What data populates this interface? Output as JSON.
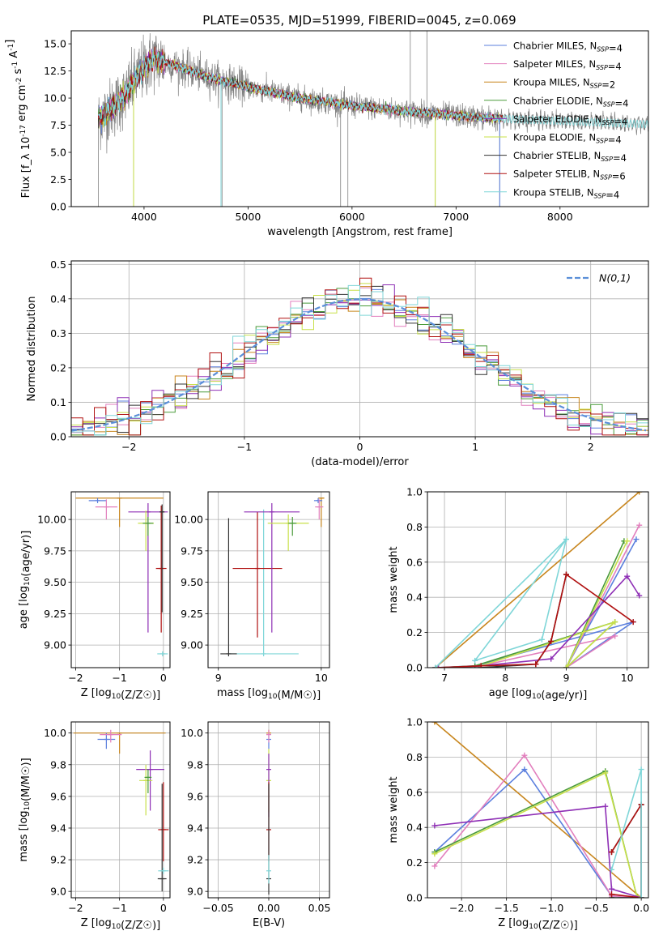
{
  "title": "PLATE=0535, MJD=51999, FIBERID=0045, z=0.069",
  "colors": [
    "#5b7fde",
    "#e27fbd",
    "#c8861e",
    "#4a9b3a",
    "#8e2fb5",
    "#c8e04a",
    "#333333",
    "#b01010",
    "#7fd6d8"
  ],
  "chart_data": [
    {
      "id": "spectrum",
      "type": "line",
      "xlabel": "wavelength [Angstrom, rest frame]",
      "ylabel": "Flux [f_λ 10^-17 erg cm^-2 s^-1 A^-1]",
      "xlim": [
        3300,
        8850
      ],
      "ylim": [
        0,
        16.2
      ],
      "xticks": [
        4000,
        5000,
        6000,
        7000,
        8000
      ],
      "yticks": [
        0.0,
        2.5,
        5.0,
        7.5,
        10.0,
        12.5,
        15.0
      ],
      "data_color": "#808080",
      "legend_position": "top-right",
      "legend": [
        {
          "label": "Chabrier MILES, N_SSP=4",
          "color": "#5b7fde"
        },
        {
          "label": "Salpeter MILES, N_SSP=4",
          "color": "#e27fbd"
        },
        {
          "label": "Kroupa MILES, N_SSP=2",
          "color": "#c8861e"
        },
        {
          "label": "Chabrier ELODIE, N_SSP=4",
          "color": "#4a9b3a"
        },
        {
          "label": "Salpeter ELODIE, N_SSP=4",
          "color": "#8e2fb5"
        },
        {
          "label": "Kroupa ELODIE, N_SSP=4",
          "color": "#c8e04a"
        },
        {
          "label": "Chabrier STELIB, N_SSP=4",
          "color": "#333333"
        },
        {
          "label": "Salpeter STELIB, N_SSP=6",
          "color": "#b01010"
        },
        {
          "label": "Kroupa STELIB, N_SSP=4",
          "color": "#7fd6d8"
        }
      ],
      "continuum": {
        "x": [
          3560,
          3800,
          4000,
          4100,
          4300,
          4600,
          5000,
          5500,
          6000,
          6500,
          7000,
          7400,
          8000,
          8800
        ],
        "y": [
          8.0,
          10.0,
          12.8,
          13.6,
          13.0,
          12.0,
          11.0,
          10.0,
          9.3,
          8.8,
          8.4,
          8.1,
          7.9,
          7.6
        ]
      }
    },
    {
      "id": "residuals",
      "type": "histogram",
      "xlabel": "(data-model)/error",
      "ylabel": "Normed distribution",
      "xlim": [
        -2.5,
        2.5
      ],
      "ylim": [
        0,
        0.51
      ],
      "xticks": [
        -2,
        -1,
        0,
        1,
        2
      ],
      "yticks": [
        0.0,
        0.1,
        0.2,
        0.3,
        0.4,
        0.5
      ],
      "grid": true,
      "legend": [
        {
          "label": "N(0,1)",
          "color": "#5b8fd8",
          "style": "dashed"
        }
      ],
      "legend_position": "top-right"
    },
    {
      "id": "age_vs_Z",
      "type": "errorbar",
      "xlabel": "Z [log10(Z/Z☉)]",
      "ylabel": "age [log10(age/yr)]",
      "xlim": [
        -2.1,
        0.15
      ],
      "ylim": [
        8.82,
        10.22
      ],
      "xticks": [
        -2,
        -1,
        0
      ],
      "yticks": [
        9.0,
        9.25,
        9.5,
        9.75,
        10.0
      ],
      "points": [
        {
          "c": 2,
          "x": -1.0,
          "xerr": 1.0,
          "y": 10.17,
          "yerr": [
            0.23,
            0.0
          ]
        },
        {
          "c": 0,
          "x": -1.5,
          "xerr": 0.2,
          "y": 10.15,
          "yerr": [
            0.02,
            0.02
          ]
        },
        {
          "c": 1,
          "x": -1.3,
          "xerr": 0.25,
          "y": 10.1,
          "yerr": [
            0.1,
            0.06
          ]
        },
        {
          "c": 4,
          "x": -0.35,
          "xerr": 0.45,
          "y": 10.06,
          "yerr": [
            0.96,
            0.07
          ]
        },
        {
          "c": 5,
          "x": -0.4,
          "xerr": 0.18,
          "y": 9.97,
          "yerr": [
            0.22,
            0.1
          ]
        },
        {
          "c": 3,
          "x": -0.35,
          "xerr": 0.12,
          "y": 9.97,
          "yerr": [
            0.1,
            0.05
          ]
        },
        {
          "c": 7,
          "x": -0.05,
          "xerr": 0.12,
          "y": 9.61,
          "yerr": [
            0.51,
            0.5
          ]
        },
        {
          "c": 6,
          "x": -0.03,
          "xerr": 0.05,
          "y": 10.06,
          "yerr": [
            0.8,
            0.06
          ]
        },
        {
          "c": 8,
          "x": -0.02,
          "xerr": 0.12,
          "y": 8.93,
          "yerr": [
            0.02,
            0.02
          ]
        }
      ]
    },
    {
      "id": "age_vs_mass",
      "type": "errorbar",
      "xlabel": "mass [log10(M/M☉)]",
      "ylabel": "",
      "xlim": [
        8.9,
        10.08
      ],
      "ylim": [
        8.82,
        10.22
      ],
      "xticks": [
        9,
        10
      ],
      "yticks": [
        9.0,
        9.25,
        9.5,
        9.75,
        10.0
      ],
      "points": [
        {
          "c": 8,
          "x": 9.44,
          "xerr": 0.34,
          "y": 8.93,
          "yerr": [
            0.02,
            1.15
          ]
        },
        {
          "c": 6,
          "x": 9.1,
          "xerr": 0.08,
          "y": 8.93,
          "yerr": [
            0.02,
            1.08
          ]
        },
        {
          "c": 7,
          "x": 9.38,
          "xerr": 0.24,
          "y": 9.61,
          "yerr": [
            0.55,
            0.45
          ]
        },
        {
          "c": 4,
          "x": 9.52,
          "xerr": 0.27,
          "y": 10.06,
          "yerr": [
            0.96,
            0.07
          ]
        },
        {
          "c": 5,
          "x": 9.68,
          "xerr": 0.2,
          "y": 9.97,
          "yerr": [
            0.22,
            0.07
          ]
        },
        {
          "c": 3,
          "x": 9.72,
          "xerr": 0.04,
          "y": 9.97,
          "yerr": [
            0.1,
            0.05
          ]
        },
        {
          "c": 2,
          "x": 10.0,
          "xerr": 0.03,
          "y": 10.17,
          "yerr": [
            0.23,
            0.0
          ]
        },
        {
          "c": 0,
          "x": 9.97,
          "xerr": 0.04,
          "y": 10.15,
          "yerr": [
            0.02,
            0.02
          ]
        },
        {
          "c": 1,
          "x": 9.98,
          "xerr": 0.04,
          "y": 10.1,
          "yerr": [
            0.1,
            0.06
          ]
        }
      ]
    },
    {
      "id": "weight_vs_age",
      "type": "line",
      "xlabel": "age [log10(age/yr)]",
      "ylabel": "mass weight",
      "xlim": [
        6.72,
        10.35
      ],
      "ylim": [
        0,
        1.0
      ],
      "xticks": [
        7,
        8,
        9,
        10
      ],
      "yticks": [
        0.0,
        0.2,
        0.4,
        0.6,
        0.8,
        1.0
      ],
      "grid": true,
      "series": [
        {
          "c": 2,
          "x": [
            6.85,
            10.2
          ],
          "y": [
            0.0,
            1.0
          ]
        },
        {
          "c": 0,
          "x": [
            10.15,
            9.0,
            10.1,
            7.5,
            6.85
          ],
          "y": [
            0.73,
            0.0,
            0.26,
            0.01,
            0.0
          ]
        },
        {
          "c": 1,
          "x": [
            10.2,
            9.0,
            9.8,
            7.6,
            6.9
          ],
          "y": [
            0.81,
            0.0,
            0.18,
            0.01,
            0.0
          ]
        },
        {
          "c": 3,
          "x": [
            9.95,
            9.0,
            9.8,
            7.5,
            6.9
          ],
          "y": [
            0.72,
            0.0,
            0.26,
            0.01,
            0.0
          ]
        },
        {
          "c": 5,
          "x": [
            10.0,
            9.0,
            9.8,
            7.6,
            6.9
          ],
          "y": [
            0.72,
            0.0,
            0.26,
            0.01,
            0.0
          ]
        },
        {
          "c": 4,
          "x": [
            10.2,
            10.0,
            8.75,
            7.6,
            6.9
          ],
          "y": [
            0.41,
            0.52,
            0.05,
            0.01,
            0.0
          ]
        },
        {
          "c": 6,
          "x": [
            9.0,
            8.75,
            8.5,
            7.6,
            6.85
          ],
          "y": [
            0.53,
            0.15,
            0.02,
            0.0,
            0.0
          ]
        },
        {
          "c": 7,
          "x": [
            10.1,
            9.0,
            8.75,
            8.5,
            7.6,
            6.85
          ],
          "y": [
            0.26,
            0.53,
            0.15,
            0.02,
            0.01,
            0.0
          ]
        },
        {
          "c": 8,
          "x": [
            9.0,
            8.6,
            7.5,
            9.0,
            6.85
          ],
          "y": [
            0.73,
            0.16,
            0.04,
            0.73,
            0.0
          ]
        }
      ]
    },
    {
      "id": "mass_vs_Z",
      "type": "errorbar",
      "xlabel": "Z [log10(Z/Z☉)]",
      "ylabel": "mass [log10(M/M☉)]",
      "xlim": [
        -2.1,
        0.15
      ],
      "ylim": [
        8.96,
        10.07
      ],
      "xticks": [
        -2,
        -1,
        0
      ],
      "yticks": [
        9.0,
        9.2,
        9.4,
        9.6,
        9.8,
        10.0
      ],
      "points": [
        {
          "c": 2,
          "x": -1.0,
          "xerr": 1.05,
          "y": 10.0,
          "yerr": [
            0.13,
            0.0
          ]
        },
        {
          "c": 0,
          "x": -1.3,
          "xerr": 0.2,
          "y": 9.96,
          "yerr": [
            0.06,
            0.04
          ]
        },
        {
          "c": 1,
          "x": -1.2,
          "xerr": 0.25,
          "y": 9.99,
          "yerr": [
            0.05,
            0.03
          ]
        },
        {
          "c": 4,
          "x": -0.3,
          "xerr": 0.32,
          "y": 9.77,
          "yerr": [
            0.26,
            0.12
          ]
        },
        {
          "c": 5,
          "x": -0.4,
          "xerr": 0.15,
          "y": 9.7,
          "yerr": [
            0.22,
            0.1
          ]
        },
        {
          "c": 3,
          "x": -0.35,
          "xerr": 0.08,
          "y": 9.72,
          "yerr": [
            0.1,
            0.05
          ]
        },
        {
          "c": 7,
          "x": 0.0,
          "xerr": 0.12,
          "y": 9.39,
          "yerr": [
            0.2,
            0.3
          ]
        },
        {
          "c": 6,
          "x": -0.03,
          "xerr": 0.1,
          "y": 9.08,
          "yerr": [
            0.08,
            0.6
          ]
        },
        {
          "c": 8,
          "x": 0.0,
          "xerr": 0.12,
          "y": 9.13,
          "yerr": [
            0.02,
            0.02
          ]
        }
      ]
    },
    {
      "id": "mass_vs_ebv",
      "type": "errorbar",
      "xlabel": "E(B-V)",
      "ylabel": "",
      "xlim": [
        -0.06,
        0.06
      ],
      "ylim": [
        8.96,
        10.07
      ],
      "xticks": [
        -0.05,
        0.0,
        0.05
      ],
      "yticks": [
        9.0,
        9.2,
        9.4,
        9.6,
        9.8,
        10.0
      ],
      "points": [
        {
          "c": 2,
          "x": 0.0,
          "xerr": 0.0,
          "y": 10.0,
          "yerr": [
            0.0,
            0.02
          ]
        },
        {
          "c": 0,
          "x": 0.0,
          "xerr": 0.0,
          "y": 9.96,
          "yerr": [
            0.06,
            0.04
          ]
        },
        {
          "c": 1,
          "x": 0.0,
          "xerr": 0.0,
          "y": 9.99,
          "yerr": [
            0.05,
            0.03
          ]
        },
        {
          "c": 5,
          "x": 0.0,
          "xerr": 0.0,
          "y": 9.7,
          "yerr": [
            0.2,
            0.2
          ]
        },
        {
          "c": 4,
          "x": 0.0,
          "xerr": 0.0,
          "y": 9.77,
          "yerr": [
            0.3,
            0.1
          ]
        },
        {
          "c": 7,
          "x": 0.0,
          "xerr": 0.0,
          "y": 9.39,
          "yerr": [
            0.2,
            0.3
          ]
        },
        {
          "c": 6,
          "x": 0.0,
          "xerr": 0.0,
          "y": 9.08,
          "yerr": [
            0.1,
            0.6
          ]
        },
        {
          "c": 8,
          "x": 0.0,
          "xerr": 0.0,
          "y": 9.13,
          "yerr": [
            0.08,
            0.1
          ]
        }
      ]
    },
    {
      "id": "weight_vs_Z",
      "type": "line",
      "xlabel": "Z [log10(Z/Z☉)]",
      "ylabel": "mass weight",
      "xlim": [
        -2.38,
        0.08
      ],
      "ylim": [
        0,
        1.0
      ],
      "xticks": [
        -2.0,
        -1.5,
        -1.0,
        -0.5,
        0.0
      ],
      "yticks": [
        0.0,
        0.2,
        0.4,
        0.6,
        0.8,
        1.0
      ],
      "grid": true,
      "series": [
        {
          "c": 2,
          "x": [
            -2.3,
            0.0
          ],
          "y": [
            1.0,
            0.0
          ]
        },
        {
          "c": 0,
          "x": [
            -2.3,
            -1.3,
            -0.33,
            0.0
          ],
          "y": [
            0.26,
            0.73,
            0.01,
            0.0
          ]
        },
        {
          "c": 1,
          "x": [
            -2.3,
            -1.3,
            -0.33,
            0.0
          ],
          "y": [
            0.18,
            0.81,
            0.01,
            0.0
          ]
        },
        {
          "c": 3,
          "x": [
            -2.3,
            -0.4,
            -0.05,
            0.0
          ],
          "y": [
            0.26,
            0.72,
            0.01,
            0.0
          ]
        },
        {
          "c": 5,
          "x": [
            -2.3,
            -0.4,
            -0.05,
            0.0
          ],
          "y": [
            0.25,
            0.71,
            0.01,
            0.0
          ]
        },
        {
          "c": 4,
          "x": [
            -2.3,
            -0.4,
            -0.33,
            0.0
          ],
          "y": [
            0.41,
            0.52,
            0.05,
            0.0
          ]
        },
        {
          "c": 6,
          "x": [
            -0.33,
            0.0,
            0.0,
            -0.33
          ],
          "y": [
            0.26,
            0.53,
            0.0,
            0.0
          ]
        },
        {
          "c": 7,
          "x": [
            -0.33,
            0.0,
            0.0,
            -0.33
          ],
          "y": [
            0.26,
            0.53,
            0.0,
            0.02
          ]
        },
        {
          "c": 8,
          "x": [
            -0.33,
            0.0,
            0.0
          ],
          "y": [
            0.16,
            0.73,
            0.0
          ]
        }
      ]
    }
  ]
}
